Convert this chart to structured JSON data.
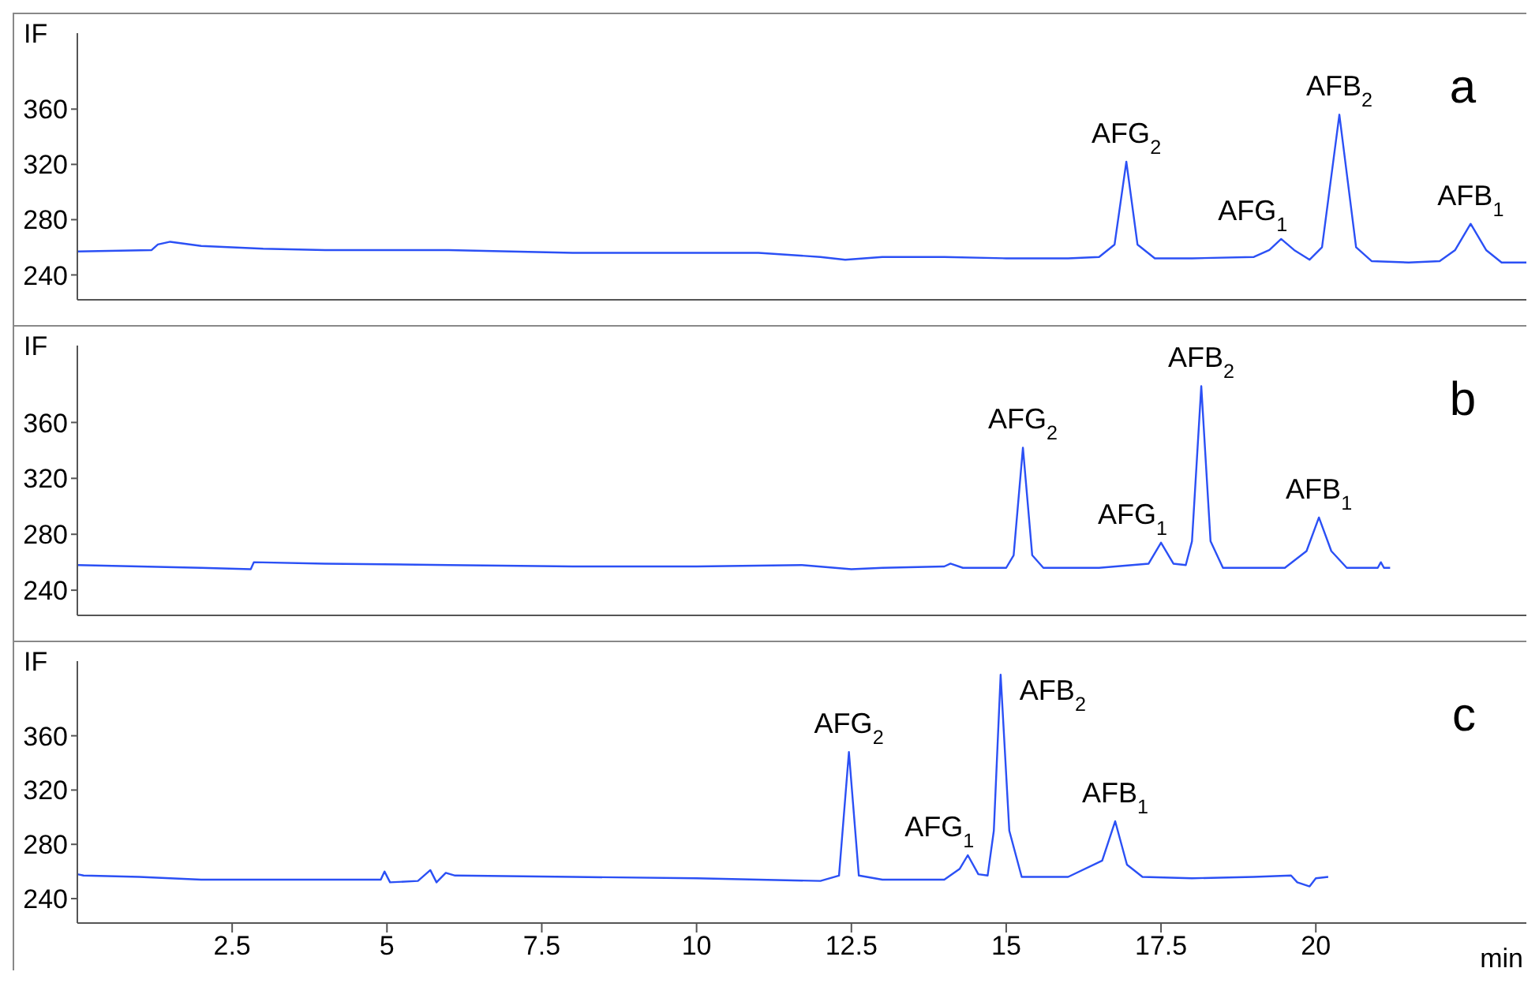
{
  "chart_data": [
    {
      "type": "line",
      "ylabel": "IF",
      "xlim": [
        0,
        23.4
      ],
      "ylim": [
        222,
        415
      ],
      "xticks": [
        2.5,
        5,
        7.5,
        10,
        12.5,
        15,
        17.5,
        20
      ],
      "yticks": [
        240,
        280,
        320,
        360
      ],
      "tick_labels": "y",
      "grid": false,
      "marker": "none",
      "line_style": "solid",
      "x": [
        0,
        1.2,
        1.3,
        1.5,
        2,
        3,
        4,
        5,
        6,
        7,
        8,
        9,
        10,
        11,
        12,
        12.4,
        13,
        14,
        15,
        16,
        16.5,
        16.75,
        16.94,
        17.12,
        17.4,
        18,
        19,
        19.25,
        19.44,
        19.65,
        19.9,
        20.1,
        20.38,
        20.65,
        20.9,
        21.5,
        22,
        22.25,
        22.5,
        22.75,
        23,
        23.4
      ],
      "series": [
        {
          "color": "#2b50f5",
          "values": [
            257,
            258,
            262,
            264,
            261,
            259,
            258,
            258,
            258,
            257,
            256,
            256,
            256,
            256,
            253,
            251,
            253,
            253,
            252,
            252,
            253,
            262,
            322,
            262,
            252,
            252,
            253,
            258,
            266,
            258,
            251,
            260,
            356,
            260,
            250,
            249,
            250,
            258,
            277,
            258,
            249,
            249
          ]
        }
      ],
      "annotations": [
        "a",
        {
          "text": "AFG$_{2}$",
          "x": 16.94,
          "y": 322
        },
        {
          "text": "AFG$_{1}$",
          "x": 19.44,
          "y": 266
        },
        {
          "text": "AFB$_{2}$",
          "x": 20.38,
          "y": 356
        },
        {
          "text": "AFB$_{1}$",
          "x": 22.5,
          "y": 277
        }
      ]
    },
    {
      "type": "line",
      "ylabel": "IF",
      "xlim": [
        0,
        23.4
      ],
      "ylim": [
        222,
        415
      ],
      "xticks": [
        2.5,
        5,
        7.5,
        10,
        12.5,
        15,
        17.5,
        20
      ],
      "yticks": [
        240,
        280,
        320,
        360
      ],
      "tick_labels": "y",
      "grid": false,
      "marker": "none",
      "line_style": "solid",
      "x": [
        0,
        2,
        2.8,
        2.85,
        4,
        6,
        8,
        10,
        11.7,
        12.5,
        13,
        14,
        14.1,
        14.3,
        15,
        15.12,
        15.27,
        15.42,
        15.6,
        16.5,
        17.3,
        17.5,
        17.7,
        17.9,
        18,
        18.15,
        18.3,
        18.5,
        19.5,
        19.85,
        20.05,
        20.25,
        20.5,
        21,
        21.05,
        21.1,
        21.2
      ],
      "series": [
        {
          "color": "#2b50f5",
          "values": [
            258,
            256,
            255,
            260,
            259,
            258,
            257,
            257,
            258,
            255,
            256,
            257,
            259,
            256,
            256,
            265,
            342,
            265,
            256,
            256,
            259,
            274,
            259,
            258,
            275,
            386,
            275,
            256,
            256,
            268,
            292,
            268,
            256,
            256,
            260,
            256,
            256
          ]
        }
      ],
      "annotations": [
        "b",
        {
          "text": "AFG$_{2}$",
          "x": 15.27,
          "y": 342
        },
        {
          "text": "AFG$_{1}$",
          "x": 17.5,
          "y": 274
        },
        {
          "text": "AFB$_{2}$",
          "x": 18.15,
          "y": 386
        },
        {
          "text": "AFB$_{1}$",
          "x": 20.05,
          "y": 292
        }
      ]
    },
    {
      "type": "line",
      "ylabel": "IF",
      "xlabel": "min",
      "xlim": [
        0,
        23.4
      ],
      "ylim": [
        222,
        415
      ],
      "xticks": [
        2.5,
        5,
        7.5,
        10,
        12.5,
        15,
        17.5,
        20
      ],
      "yticks": [
        240,
        280,
        320,
        360
      ],
      "grid": false,
      "marker": "none",
      "line_style": "solid",
      "x": [
        0,
        0.1,
        1,
        2,
        3,
        4,
        4.9,
        4.96,
        5.05,
        5.5,
        5.7,
        5.8,
        5.95,
        6.1,
        8,
        10,
        11,
        12,
        12.3,
        12.46,
        12.62,
        13,
        14,
        14.25,
        14.38,
        14.55,
        14.7,
        14.8,
        14.91,
        15.05,
        15.25,
        16,
        16.55,
        16.76,
        16.95,
        17.2,
        18,
        19,
        19.6,
        19.7,
        19.9,
        20,
        20.2
      ],
      "series": [
        {
          "color": "#2b50f5",
          "values": [
            258,
            257,
            256,
            254,
            254,
            254,
            254,
            260,
            252,
            253,
            261,
            252,
            259,
            257,
            256,
            255,
            254,
            253,
            257,
            348,
            257,
            254,
            254,
            262,
            272,
            258,
            257,
            290,
            405,
            290,
            256,
            256,
            268,
            297,
            265,
            256,
            255,
            256,
            257,
            252,
            249,
            255,
            256
          ]
        }
      ],
      "annotations": [
        "c",
        {
          "text": "AFG$_{2}$",
          "x": 12.46,
          "y": 348
        },
        {
          "text": "AFG$_{1}$",
          "x": 14.38,
          "y": 272
        },
        {
          "text": "AFB$_{2}$",
          "x": 14.91,
          "y": 405
        },
        {
          "text": "AFB$_{1}$",
          "x": 16.76,
          "y": 297
        }
      ]
    }
  ]
}
